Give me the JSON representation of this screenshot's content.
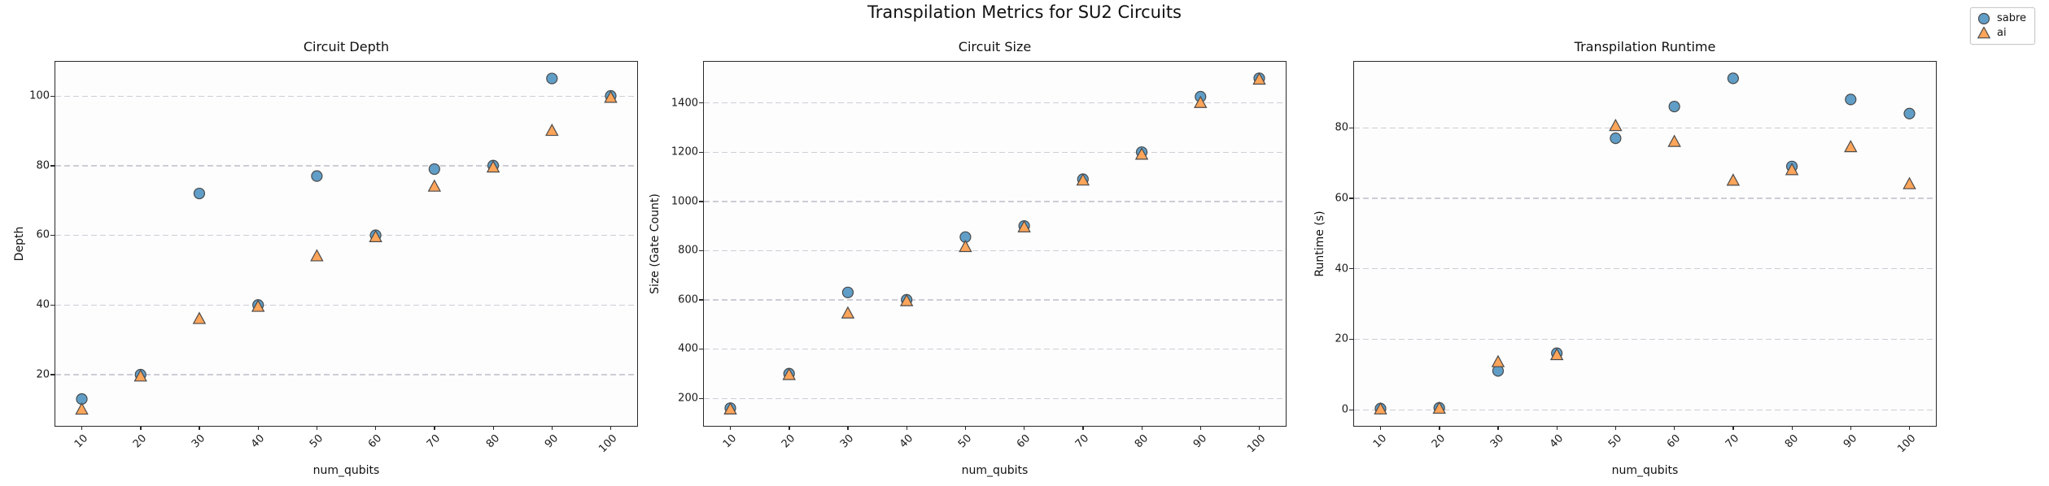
{
  "figure": {
    "suptitle": "Transpilation Metrics for SU2 Circuits",
    "legend": {
      "position": "figure-top-right",
      "items": [
        {
          "label": "sabre",
          "marker": "circle",
          "color": "#609ec8"
        },
        {
          "label": "ai",
          "marker": "triangle",
          "color": "#ffa55a"
        }
      ]
    }
  },
  "colors": {
    "marker_edge": "#4a4a4a",
    "gridline": "#cdcdd6",
    "axes_border": "#2a2a2a",
    "background": "#ffffff"
  },
  "chart_data": [
    {
      "type": "scatter",
      "title": "Circuit Depth",
      "xlabel": "num_qubits",
      "ylabel": "Depth",
      "x": [
        10,
        20,
        30,
        40,
        50,
        60,
        70,
        80,
        90,
        100
      ],
      "xticks": [
        10,
        20,
        30,
        40,
        50,
        60,
        70,
        80,
        90,
        100
      ],
      "yticks": [
        20,
        40,
        60,
        80,
        100
      ],
      "xlim": [
        5.5,
        104.5
      ],
      "ylim": [
        5.3,
        109.8
      ],
      "grid": "y-dashed",
      "series": [
        {
          "name": "sabre",
          "marker": "circle",
          "color": "#609ec8",
          "values": [
            13,
            20,
            72,
            40,
            77,
            60,
            79,
            80,
            105,
            100
          ]
        },
        {
          "name": "ai",
          "marker": "triangle",
          "color": "#ffa55a",
          "values": [
            10,
            19.5,
            36,
            39.5,
            54,
            59.5,
            74,
            79.5,
            90,
            99.5
          ]
        }
      ]
    },
    {
      "type": "scatter",
      "title": "Circuit Size",
      "xlabel": "num_qubits",
      "ylabel": "Size (Gate Count)",
      "x": [
        10,
        20,
        30,
        40,
        50,
        60,
        70,
        80,
        90,
        100
      ],
      "xticks": [
        10,
        20,
        30,
        40,
        50,
        60,
        70,
        80,
        90,
        100
      ],
      "yticks": [
        200,
        400,
        600,
        800,
        1000,
        1200,
        1400
      ],
      "xlim": [
        5.5,
        104.5
      ],
      "ylim": [
        88,
        1567
      ],
      "grid": "y-dashed",
      "series": [
        {
          "name": "sabre",
          "marker": "circle",
          "color": "#609ec8",
          "values": [
            160,
            300,
            630,
            600,
            855,
            900,
            1090,
            1200,
            1425,
            1500
          ]
        },
        {
          "name": "ai",
          "marker": "triangle",
          "color": "#ffa55a",
          "values": [
            155,
            295,
            545,
            595,
            815,
            895,
            1085,
            1190,
            1400,
            1495
          ]
        }
      ]
    },
    {
      "type": "scatter",
      "title": "Transpilation Runtime",
      "xlabel": "num_qubits",
      "ylabel": "Runtime (s)",
      "x": [
        10,
        20,
        30,
        40,
        50,
        60,
        70,
        80,
        90,
        100
      ],
      "xticks": [
        10,
        20,
        30,
        40,
        50,
        60,
        70,
        80,
        90,
        100
      ],
      "yticks": [
        0,
        20,
        40,
        60,
        80
      ],
      "xlim": [
        5.5,
        104.5
      ],
      "ylim": [
        -4.6,
        98.7
      ],
      "grid": "y-dashed",
      "series": [
        {
          "name": "sabre",
          "marker": "circle",
          "color": "#609ec8",
          "values": [
            0.3,
            0.5,
            11,
            16,
            77,
            86,
            94,
            69,
            88,
            84
          ]
        },
        {
          "name": "ai",
          "marker": "triangle",
          "color": "#ffa55a",
          "values": [
            0.1,
            0.3,
            13.5,
            15.5,
            80.5,
            76,
            65,
            68,
            74.5,
            64
          ]
        }
      ]
    }
  ]
}
